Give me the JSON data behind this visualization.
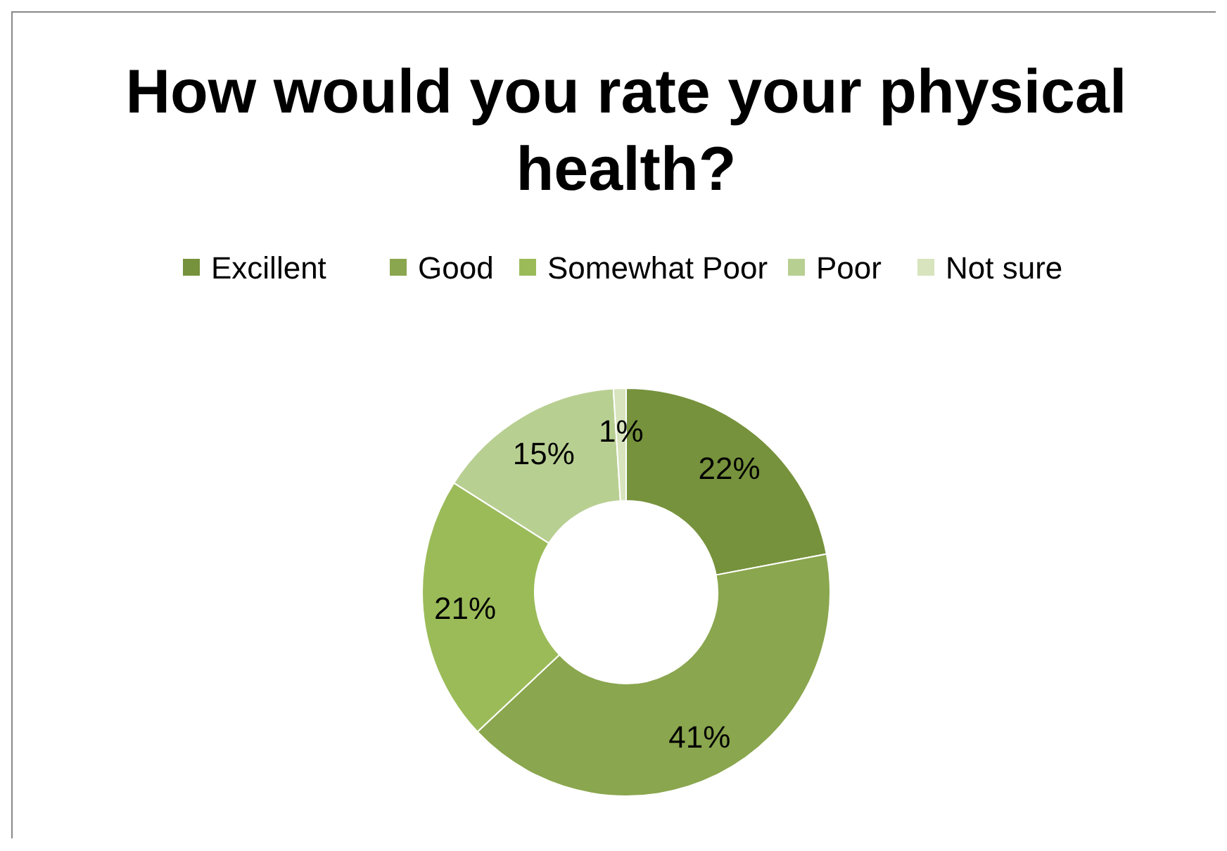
{
  "chart_data": {
    "type": "donut",
    "title": "How would you rate your physical health?",
    "categories": [
      "Excillent",
      "Good",
      "Somewhat Poor",
      "Poor",
      "Not sure"
    ],
    "values": [
      22,
      41,
      21,
      15,
      1
    ],
    "colors": [
      "#76923c",
      "#8aa64e",
      "#9bbb59",
      "#b8cf92",
      "#d7e4bd"
    ],
    "value_labels": [
      "22%",
      "41%",
      "21%",
      "15%",
      "1%"
    ],
    "legend": "top"
  }
}
